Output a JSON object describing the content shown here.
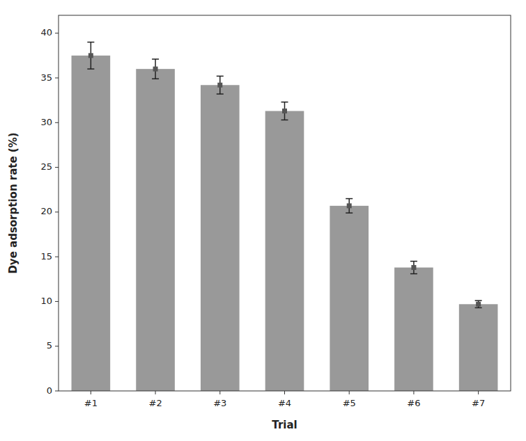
{
  "chart_data": {
    "type": "bar",
    "categories": [
      "#1",
      "#2",
      "#3",
      "#4",
      "#5",
      "#6",
      "#7"
    ],
    "values": [
      37.5,
      36.0,
      34.2,
      31.3,
      20.7,
      13.8,
      9.7
    ],
    "errors": [
      1.5,
      1.1,
      1.0,
      1.0,
      0.8,
      0.7,
      0.4
    ],
    "color": "#999999",
    "marker": "square",
    "xlabel": "Trial",
    "ylabel": "Dye adsorption rate (%)",
    "ylim": [
      0,
      42
    ],
    "yticks": [
      0,
      5,
      10,
      15,
      20,
      25,
      30,
      35,
      40
    ],
    "grid": false
  }
}
